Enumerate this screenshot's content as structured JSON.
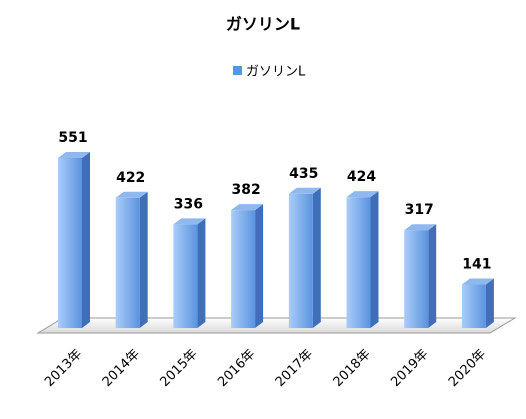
{
  "chart_data": {
    "type": "bar3d",
    "title": "ガソリンL",
    "categories": [
      "2013年",
      "2014年",
      "2015年",
      "2016年",
      "2017年",
      "2018年",
      "2019年",
      "2020年"
    ],
    "series": [
      {
        "name": "ガソリンL",
        "color": "#5b93e0",
        "values": [
          551,
          422,
          336,
          382,
          435,
          424,
          317,
          141
        ]
      }
    ],
    "legend": "top"
  }
}
